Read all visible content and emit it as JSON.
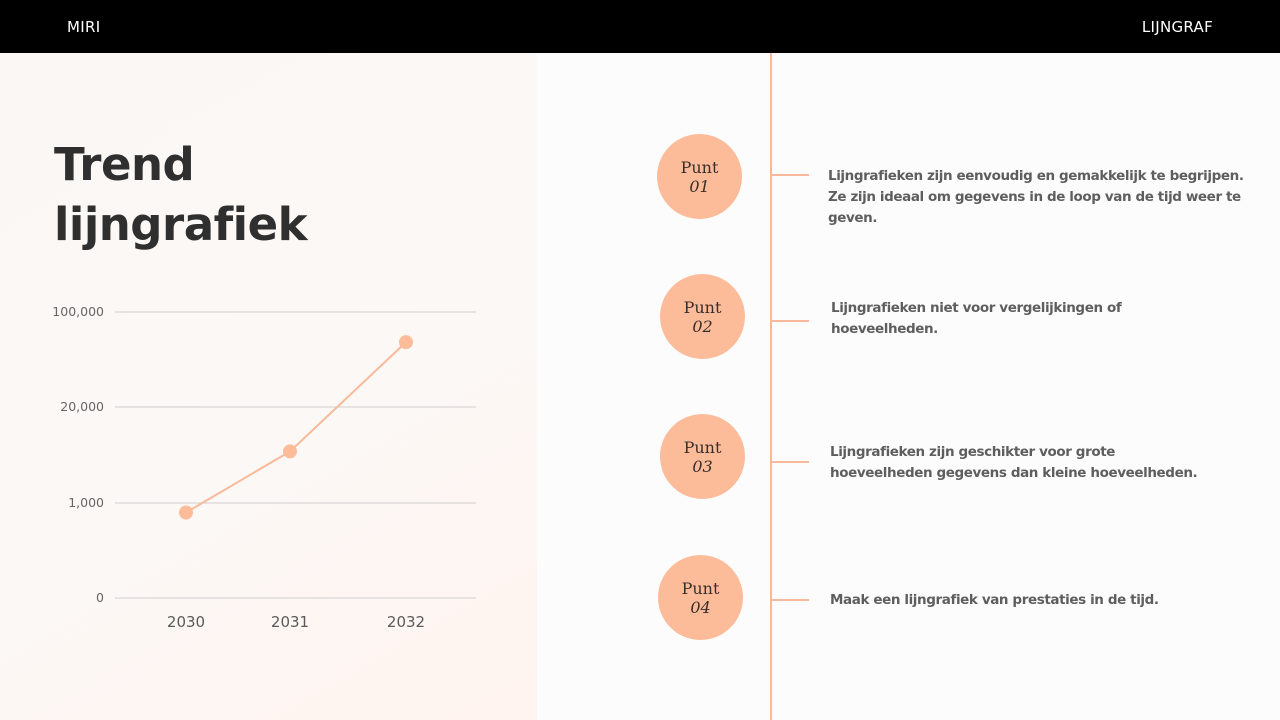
{
  "header": {
    "brand": "MIRI",
    "section": "LIJNGRAF"
  },
  "title": {
    "line1": "Trend",
    "line2": "lijngrafiek"
  },
  "colors": {
    "accent": "#fcbc9a",
    "line": "#f9b99a",
    "topbar": "#000000"
  },
  "chart_data": {
    "type": "line",
    "categories": [
      "2030",
      "2031",
      "2032"
    ],
    "y_ticks": [
      "0",
      "1,000",
      "20,000",
      "100,000"
    ],
    "y_scale": "categorical-ticks",
    "values": [
      500,
      5000,
      60000
    ],
    "title": "",
    "xlabel": "",
    "ylabel": "",
    "grid": true
  },
  "points": [
    {
      "label": "Punt",
      "number": "01",
      "lines": [
        "Lijngrafieken zijn eenvoudig en gemakkelijk te begrijpen.",
        "Ze zijn ideaal om gegevens in de loop van de tijd weer te geven."
      ]
    },
    {
      "label": "Punt",
      "number": "02",
      "lines": [
        "Lijngrafieken niet voor vergelijkingen of",
        "hoeveelheden."
      ]
    },
    {
      "label": "Punt",
      "number": "03",
      "lines": [
        "Lijngrafieken zijn geschikter voor grote",
        "hoeveelheden gegevens dan kleine hoeveelheden."
      ]
    },
    {
      "label": "Punt",
      "number": "04",
      "lines": [
        "Maak een lijngrafiek van prestaties in de tijd."
      ]
    }
  ]
}
